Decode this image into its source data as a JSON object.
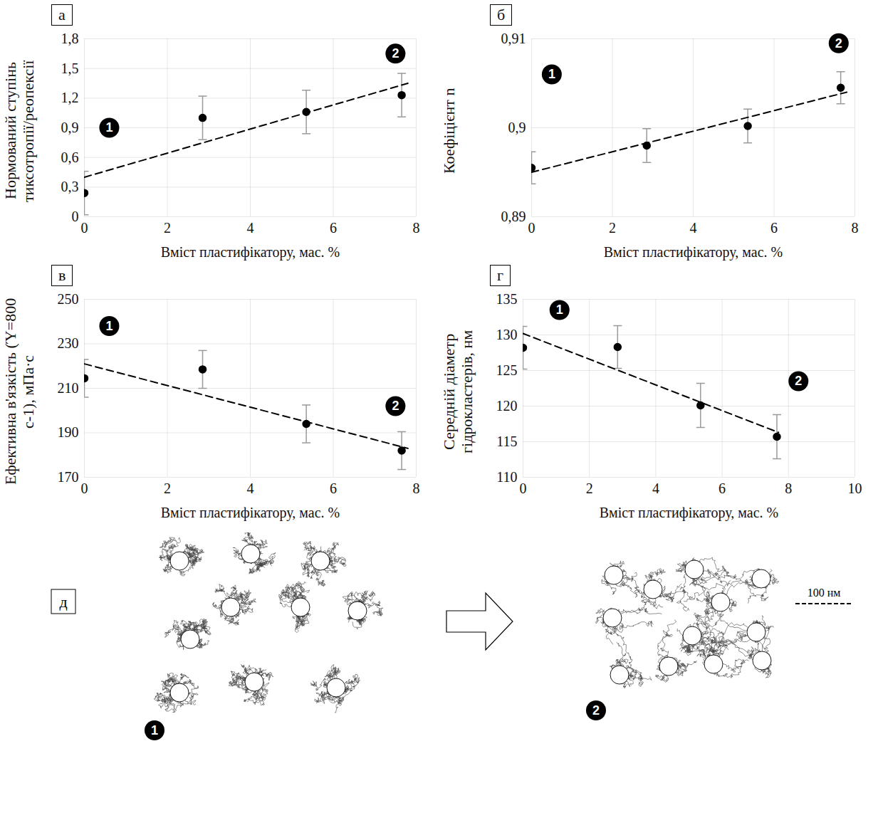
{
  "chart_data": [
    {
      "type": "scatter",
      "panel": "а",
      "y_label": "Нормований ступінь тиксотропії/реопексії",
      "x_label": "Вміст пластифікатору, мас. %",
      "x": [
        0,
        2.85,
        5.35,
        7.65
      ],
      "values": [
        0.24,
        1.0,
        1.06,
        1.23
      ],
      "errors": [
        0.22,
        0.22,
        0.22,
        0.22
      ],
      "color": "#000000",
      "trendline": {
        "x": [
          0,
          7.8
        ],
        "values": [
          0.4,
          1.35
        ],
        "line_style": "dashed"
      },
      "xlim": [
        0,
        8
      ],
      "xticks": [
        0,
        2,
        4,
        6,
        8
      ],
      "ylim": [
        0,
        1.8
      ],
      "yticks": [
        0,
        {
          "value": 0.3,
          "label": "0,3"
        },
        {
          "value": 0.6,
          "label": "0,6"
        },
        {
          "value": 0.9,
          "label": "0,9"
        },
        {
          "value": 1.2,
          "label": "1,2"
        },
        {
          "value": 1.5,
          "label": "1,5"
        },
        {
          "value": 1.8,
          "label": "1,8"
        }
      ],
      "grid": true,
      "annotations": [
        {
          "text": "1",
          "x": 0.6,
          "y": 0.9
        },
        {
          "text": "2",
          "x": 7.5,
          "y": 1.65
        }
      ]
    },
    {
      "type": "scatter",
      "panel": "б",
      "y_label": "Коефіцієнт n",
      "x_label": "Вміст пластифікатору, мас. %",
      "x": [
        0,
        2.85,
        5.35,
        7.65
      ],
      "values": [
        0.8955,
        0.898,
        0.9002,
        0.9045
      ],
      "errors": [
        0.0018,
        0.0019,
        0.0019,
        0.0018
      ],
      "color": "#000000",
      "trendline": {
        "x": [
          0,
          7.8
        ],
        "values": [
          0.895,
          0.904
        ],
        "line_style": "dashed"
      },
      "xlim": [
        0,
        8
      ],
      "xticks": [
        0,
        2,
        4,
        6,
        8
      ],
      "ylim": [
        0.89,
        0.91
      ],
      "yticks": [
        {
          "value": 0.89,
          "label": "0,89"
        },
        {
          "value": 0.9,
          "label": "0,9"
        },
        {
          "value": 0.91,
          "label": "0,91"
        }
      ],
      "grid": true,
      "annotations": [
        {
          "text": "1",
          "x": 0.5,
          "y": 0.906
        },
        {
          "text": "2",
          "x": 7.6,
          "y": 0.9095
        }
      ]
    },
    {
      "type": "scatter",
      "panel": "в",
      "y_label": "Ефективна в'язкість (Ύ=800 с-1), мПа·с",
      "x_label": "Вміст пластифікатору, мас. %",
      "x": [
        0,
        2.85,
        5.35,
        7.65
      ],
      "values": [
        214.5,
        218.5,
        194,
        182
      ],
      "errors": [
        8.5,
        8.5,
        8.5,
        8.5
      ],
      "color": "#000000",
      "trendline": {
        "x": [
          0,
          7.8
        ],
        "values": [
          221,
          183
        ],
        "line_style": "dashed"
      },
      "xlim": [
        0,
        8
      ],
      "xticks": [
        0,
        2,
        4,
        6,
        8
      ],
      "ylim": [
        170,
        250
      ],
      "yticks": [
        170,
        190,
        210,
        230,
        250
      ],
      "grid": true,
      "annotations": [
        {
          "text": "1",
          "x": 0.6,
          "y": 238
        },
        {
          "text": "2",
          "x": 7.5,
          "y": 202
        }
      ]
    },
    {
      "type": "scatter",
      "panel": "г",
      "y_label": "Середній діаметр гідрокластерів, нм",
      "x_label": "Вміст пластифікатору, мас. %",
      "x": [
        0,
        2.85,
        5.35,
        7.65
      ],
      "values": [
        128.2,
        128.3,
        120.1,
        115.7
      ],
      "errors": [
        3,
        3,
        3.1,
        3.1
      ],
      "color": "#000000",
      "trendline": {
        "x": [
          0,
          7.7
        ],
        "values": [
          130.2,
          116.3
        ],
        "line_style": "dashed"
      },
      "xlim": [
        0,
        10
      ],
      "xticks": [
        0,
        2,
        4,
        6,
        8,
        10
      ],
      "ylim": [
        110,
        135
      ],
      "yticks": [
        110,
        115,
        120,
        125,
        130,
        135
      ],
      "grid": true,
      "annotations": [
        {
          "text": "1",
          "x": 1.1,
          "y": 133.5
        },
        {
          "text": "2",
          "x": 8.3,
          "y": 123.5
        }
      ]
    }
  ],
  "diagram": {
    "panel": "д",
    "states": [
      {
        "marker": "1"
      },
      {
        "marker": "2"
      }
    ],
    "scale_bar_label": "100 нм"
  }
}
